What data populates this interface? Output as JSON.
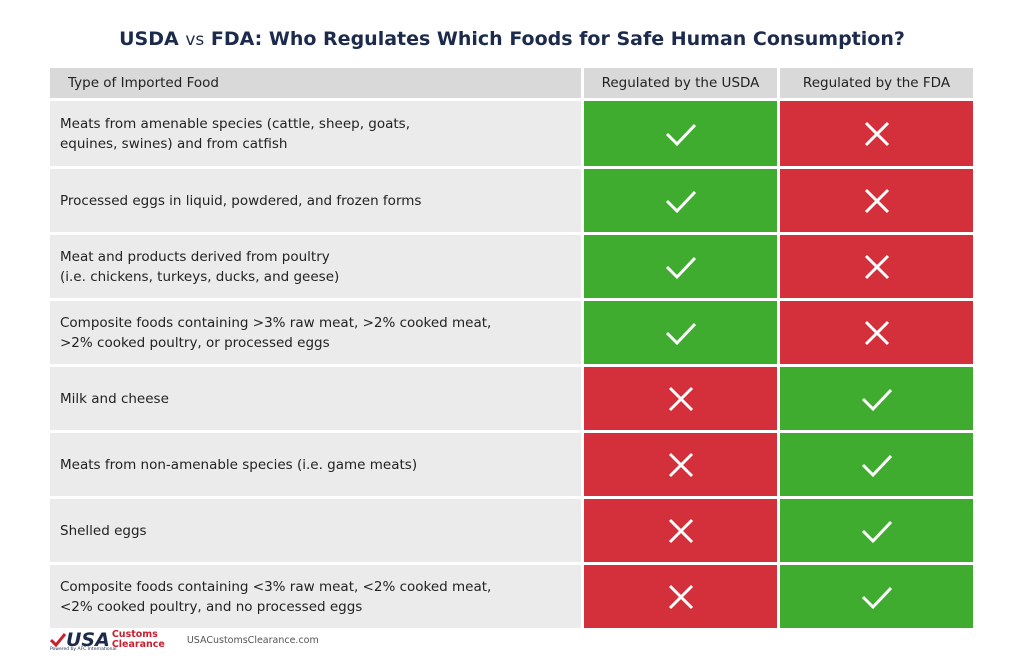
{
  "title": {
    "left": "USDA",
    "vs": "vs",
    "right": "FDA: Who Regulates Which Foods for Safe Human Consumption?"
  },
  "table": {
    "headers": [
      "Type of Imported Food",
      "Regulated by the USDA",
      "Regulated by the FDA"
    ],
    "rows": [
      {
        "food": "Meats from amenable species (cattle, sheep, goats,\nequines, swines) and from catfish",
        "usda": true,
        "fda": false
      },
      {
        "food": "Processed eggs in liquid, powdered, and frozen forms",
        "usda": true,
        "fda": false
      },
      {
        "food": "Meat and products derived from poultry\n(i.e. chickens, turkeys, ducks, and geese)",
        "usda": true,
        "fda": false
      },
      {
        "food": "Composite foods containing >3% raw meat, >2% cooked meat,\n>2% cooked poultry, or processed eggs",
        "usda": true,
        "fda": false
      },
      {
        "food": "Milk and cheese",
        "usda": false,
        "fda": true
      },
      {
        "food": "Meats from non-amenable species (i.e. game meats)",
        "usda": false,
        "fda": true
      },
      {
        "food": "Shelled eggs",
        "usda": false,
        "fda": true
      },
      {
        "food": "Composite foods containing <3% raw meat, <2% cooked meat,\n<2% cooked poultry, and no processed eggs",
        "usda": false,
        "fda": true
      }
    ]
  },
  "footer": {
    "logo_main": "USA",
    "logo_line1": "Customs",
    "logo_line2": "Clearance",
    "logo_tagline": "Powered by AFC International",
    "website": "USACustomsClearance.com"
  },
  "colors": {
    "yes": "#3fac2f",
    "no": "#d3303b"
  }
}
